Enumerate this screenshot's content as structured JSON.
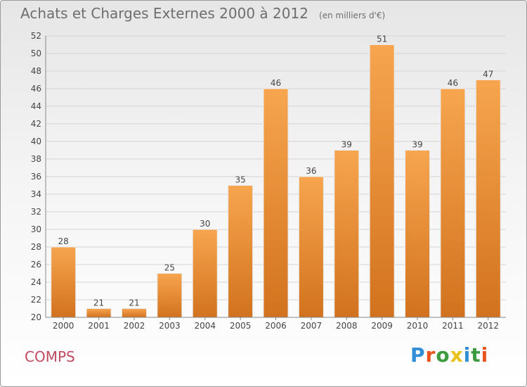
{
  "header": {
    "title": "Achats et Charges Externes 2000 à 2012",
    "unit_note": "(en milliers d'€)"
  },
  "footer": {
    "place": "COMPS",
    "brand": {
      "letters": [
        "P",
        "r",
        "o",
        "x",
        "i",
        "t",
        "i"
      ],
      "colors": [
        "#2f8ed6",
        "#e8541b",
        "#3c9a3f",
        "#e8c21b",
        "#2f8ed6",
        "#3c9a3f",
        "#e8541b"
      ]
    }
  },
  "chart_data": {
    "type": "bar",
    "title": "Achats et Charges Externes 2000 à 2012",
    "subtitle": "(en milliers d'€)",
    "xlabel": "",
    "ylabel": "",
    "categories": [
      "2000",
      "2001",
      "2002",
      "2003",
      "2004",
      "2005",
      "2006",
      "2007",
      "2008",
      "2009",
      "2010",
      "2011",
      "2012"
    ],
    "values": [
      28,
      21,
      21,
      25,
      30,
      35,
      46,
      36,
      39,
      51,
      39,
      46,
      47
    ],
    "ylim": [
      20,
      52
    ],
    "yticks": [
      20,
      22,
      24,
      26,
      28,
      30,
      32,
      34,
      36,
      38,
      40,
      42,
      44,
      46,
      48,
      50,
      52
    ],
    "grid": true,
    "legend": "none",
    "colors": {
      "bar_light": "#f7a54f",
      "bar_dark": "#d2721e",
      "grid": "#d4d4d4",
      "axis": "#888888"
    }
  }
}
